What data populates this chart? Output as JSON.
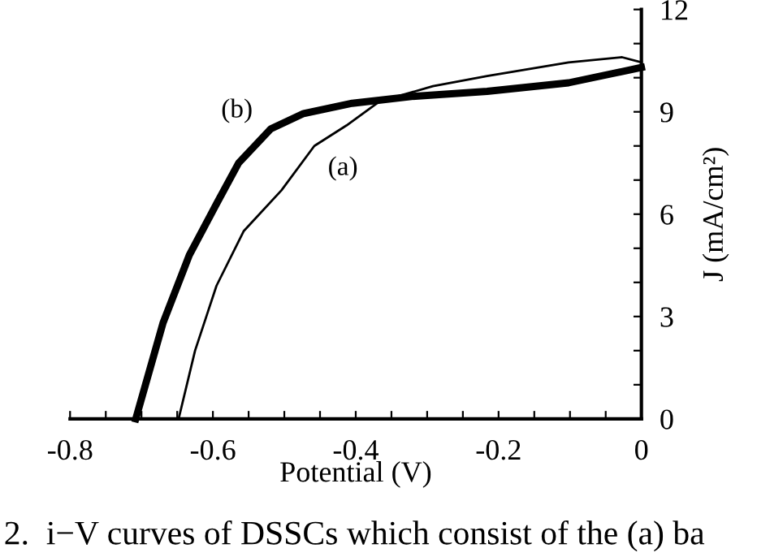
{
  "chart_data": {
    "type": "line",
    "xlabel": "Potential (V)",
    "ylabel": "J (mA/cm²)",
    "xlim": [
      -0.8,
      0
    ],
    "ylim": [
      0,
      12
    ],
    "xticks": [
      -0.8,
      {
        "value": -0.75,
        "label": null
      },
      -0.6,
      {
        "value": -0.7,
        "label": null
      },
      {
        "value": -0.65,
        "label": null
      },
      {
        "value": -0.55,
        "label": null
      },
      {
        "value": -0.5,
        "label": null
      },
      {
        "value": -0.45,
        "label": null
      },
      -0.4,
      {
        "value": -0.35,
        "label": null
      },
      {
        "value": -0.3,
        "label": null
      },
      {
        "value": -0.25,
        "label": null
      },
      -0.2,
      {
        "value": -0.15,
        "label": null
      },
      {
        "value": -0.1,
        "label": null
      },
      {
        "value": -0.05,
        "label": null
      },
      0
    ],
    "yticks": [
      0,
      {
        "value": 1,
        "label": null
      },
      {
        "value": 2,
        "label": null
      },
      3,
      {
        "value": 4,
        "label": null
      },
      {
        "value": 5,
        "label": null
      },
      6,
      {
        "value": 7,
        "label": null
      },
      {
        "value": 8,
        "label": null
      },
      9,
      {
        "value": 10,
        "label": null
      },
      {
        "value": 11,
        "label": null
      },
      12
    ],
    "grid": false,
    "legend": false,
    "marker": "none",
    "line_style": "solid",
    "series": [
      {
        "name": "(a)",
        "color": "#000000",
        "x": [
          -0.648,
          -0.625,
          -0.595,
          -0.557,
          -0.504,
          -0.458,
          -0.413,
          -0.367,
          -0.292,
          -0.216,
          -0.102,
          -0.027,
          0
        ],
        "values": [
          0,
          2.0,
          3.9,
          5.5,
          6.7,
          8.0,
          8.6,
          9.3,
          9.75,
          10.05,
          10.45,
          10.6,
          10.45
        ]
      },
      {
        "name": "(b)",
        "color": "#000000",
        "x": [
          -0.708,
          -0.67,
          -0.633,
          -0.595,
          -0.564,
          -0.519,
          -0.473,
          -0.405,
          -0.322,
          -0.216,
          -0.102,
          0
        ],
        "values": [
          0,
          2.8,
          4.8,
          6.3,
          7.5,
          8.5,
          8.95,
          9.25,
          9.45,
          9.6,
          9.85,
          10.3
        ]
      }
    ],
    "annotations": [
      "2.  i−V curves of DSSCs which consist of the (a) ba"
    ]
  }
}
